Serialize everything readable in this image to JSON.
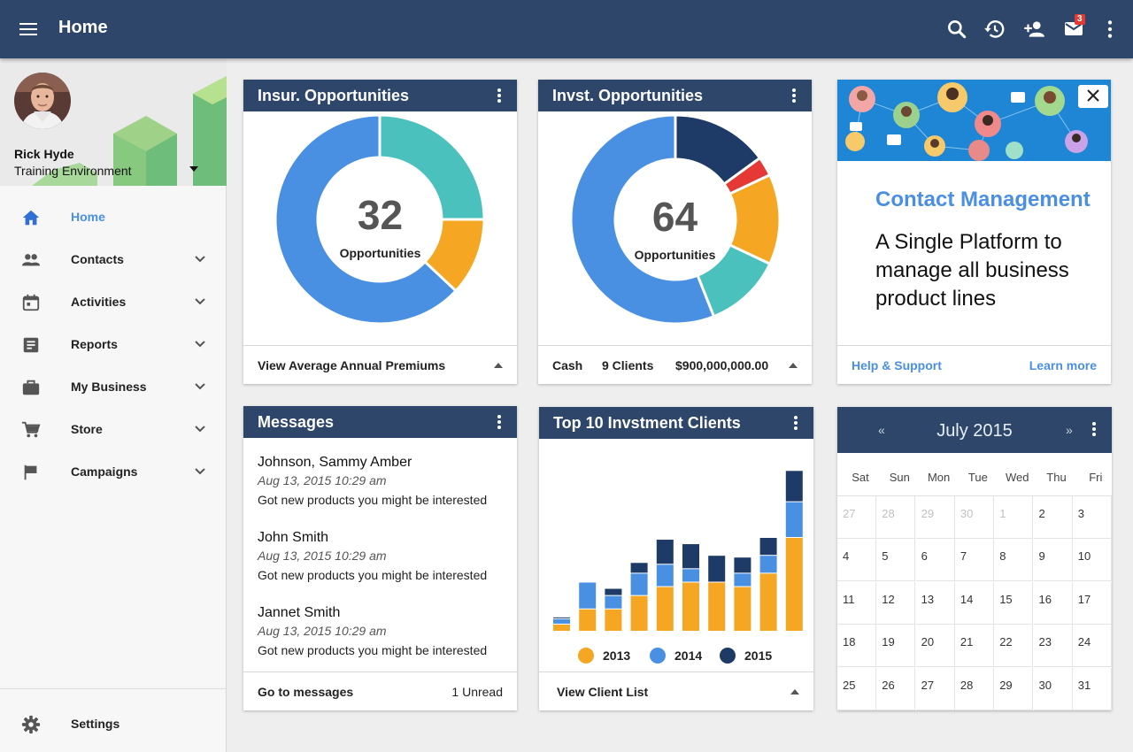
{
  "header": {
    "title": "Home",
    "mail_badge": "3"
  },
  "user": {
    "name": "Rick Hyde",
    "environment": "Training Environment"
  },
  "nav": [
    {
      "label": "Home",
      "icon": "home-icon",
      "active": true
    },
    {
      "label": "Contacts",
      "icon": "people-icon"
    },
    {
      "label": "Activities",
      "icon": "calendar-icon"
    },
    {
      "label": "Reports",
      "icon": "report-icon"
    },
    {
      "label": "My Business",
      "icon": "briefcase-icon"
    },
    {
      "label": "Store",
      "icon": "cart-icon"
    },
    {
      "label": "Campaigns",
      "icon": "flag-icon"
    }
  ],
  "settings": {
    "label": "Settings"
  },
  "insurance": {
    "title": "Insur. Opportunities",
    "count": "32",
    "count_label": "Opportunities",
    "footer": "View Average Annual Premiums",
    "chart_data": {
      "type": "pie",
      "values": [
        25,
        12,
        63
      ],
      "colors": [
        "#4bc1bd",
        "#f5a623",
        "#4a90e2"
      ]
    }
  },
  "investment": {
    "title": "Invst. Opportunities",
    "count": "64",
    "count_label": "Opportunities",
    "footer": {
      "category": "Cash",
      "clients": "9 Clients",
      "amount": "$900,000,000.00"
    },
    "chart_data": {
      "type": "pie",
      "values": [
        15,
        3,
        14,
        12,
        56
      ],
      "colors": [
        "#1e3a66",
        "#e53935",
        "#f5a623",
        "#4bc1bd",
        "#4a90e2"
      ]
    }
  },
  "promo": {
    "title": "Contact Management",
    "text": "A Single Platform to manage all business product lines",
    "help_link": "Help & Support",
    "learn_link": "Learn more"
  },
  "messages": {
    "title": "Messages",
    "items": [
      {
        "sender": "Johnson, Sammy Amber",
        "time": "Aug 13, 2015 10:29 am",
        "body": "Got new products you might be interested"
      },
      {
        "sender": "John Smith",
        "time": "Aug 13, 2015 10:29 am",
        "body": "Got new products you might be interested"
      },
      {
        "sender": "Jannet Smith",
        "time": "Aug 13, 2015 10:29 am",
        "body": "Got new products you might be interested"
      }
    ],
    "footer_link": "Go to messages",
    "unread": "1 Unread"
  },
  "clients": {
    "title": "Top 10 Invstment Clients",
    "footer": "View Client List",
    "chart_data": {
      "type": "bar",
      "stacked": true,
      "ylim": [
        0,
        210
      ],
      "series": [
        {
          "name": "2013",
          "color": "#f5a623",
          "values": [
            8,
            25,
            25,
            40,
            50,
            55,
            55,
            50,
            65,
            105
          ]
        },
        {
          "name": "2014",
          "color": "#4a90e2",
          "values": [
            6,
            30,
            15,
            25,
            25,
            15,
            0,
            15,
            20,
            40
          ]
        },
        {
          "name": "2015",
          "color": "#1e3a66",
          "values": [
            2,
            0,
            8,
            12,
            28,
            28,
            30,
            18,
            20,
            35
          ]
        }
      ]
    }
  },
  "calendar": {
    "month": "July 2015",
    "prev": "«",
    "next": "»",
    "weekdays": [
      "Sat",
      "Sun",
      "Mon",
      "Tue",
      "Wed",
      "Thu",
      "Fri"
    ],
    "days": [
      {
        "d": "27",
        "muted": true
      },
      {
        "d": "28",
        "muted": true
      },
      {
        "d": "29",
        "muted": true
      },
      {
        "d": "30",
        "muted": true
      },
      {
        "d": "1",
        "muted": true
      },
      {
        "d": "2"
      },
      {
        "d": "3"
      },
      {
        "d": "4"
      },
      {
        "d": "5"
      },
      {
        "d": "6"
      },
      {
        "d": "7"
      },
      {
        "d": "8"
      },
      {
        "d": "9"
      },
      {
        "d": "10"
      },
      {
        "d": "11"
      },
      {
        "d": "12"
      },
      {
        "d": "13"
      },
      {
        "d": "14"
      },
      {
        "d": "15"
      },
      {
        "d": "16"
      },
      {
        "d": "17"
      },
      {
        "d": "18"
      },
      {
        "d": "19"
      },
      {
        "d": "20"
      },
      {
        "d": "21"
      },
      {
        "d": "22"
      },
      {
        "d": "23"
      },
      {
        "d": "24"
      },
      {
        "d": "25"
      },
      {
        "d": "26"
      },
      {
        "d": "27"
      },
      {
        "d": "28"
      },
      {
        "d": "29"
      },
      {
        "d": "30"
      },
      {
        "d": "31"
      }
    ]
  }
}
